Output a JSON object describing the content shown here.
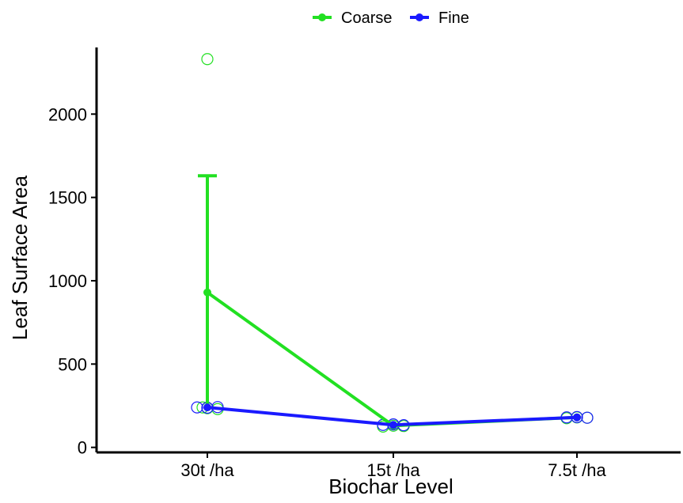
{
  "chart_data": {
    "type": "line",
    "xlabel": "Biochar Level",
    "ylabel": "Leaf Surface Area",
    "categories": [
      "30t /ha",
      "15t /ha",
      "7.5t /ha"
    ],
    "y_ticks": [
      0,
      500,
      1000,
      1500,
      2000
    ],
    "ylim": [
      -30,
      2400
    ],
    "grid": false,
    "legend_position": "top",
    "series": [
      {
        "name": "Coarse",
        "color": "#22e022",
        "values": [
          930,
          130,
          180
        ],
        "error_upper": [
          1630,
          null,
          null
        ],
        "error_lower": [
          235,
          null,
          null
        ],
        "points": [
          {
            "category": "30t /ha",
            "y": 2330
          },
          {
            "category": "30t /ha",
            "y": 235
          },
          {
            "category": "30t /ha",
            "y": 230
          },
          {
            "category": "30t /ha",
            "y": 240
          },
          {
            "category": "15t /ha",
            "y": 125
          },
          {
            "category": "15t /ha",
            "y": 130
          },
          {
            "category": "15t /ha",
            "y": 128
          },
          {
            "category": "7.5t /ha",
            "y": 175
          },
          {
            "category": "7.5t /ha",
            "y": 180
          },
          {
            "category": "7.5t /ha",
            "y": 178
          }
        ]
      },
      {
        "name": "Fine",
        "color": "#1a1aff",
        "values": [
          240,
          135,
          180
        ],
        "points": [
          {
            "category": "30t /ha",
            "y": 240
          },
          {
            "category": "30t /ha",
            "y": 238
          },
          {
            "category": "30t /ha",
            "y": 242
          },
          {
            "category": "15t /ha",
            "y": 135
          },
          {
            "category": "15t /ha",
            "y": 138
          },
          {
            "category": "15t /ha",
            "y": 133
          },
          {
            "category": "7.5t /ha",
            "y": 180
          },
          {
            "category": "7.5t /ha",
            "y": 182
          },
          {
            "category": "7.5t /ha",
            "y": 178
          }
        ]
      }
    ]
  }
}
